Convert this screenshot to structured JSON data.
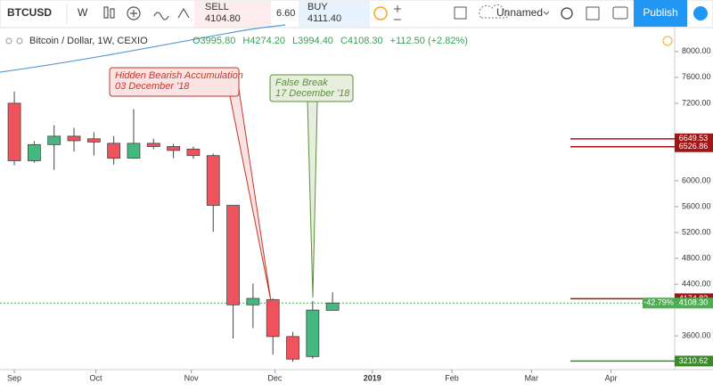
{
  "toolbar": {
    "symbol": "BTCUSD",
    "interval": "W",
    "sell_label": "SELL",
    "sell_price": "4104.80",
    "spread": "6.60",
    "buy_label": "BUY",
    "buy_price": "4111.40",
    "layout_name": "Unnamed",
    "publish": "Publish"
  },
  "chart_data": {
    "type": "candlestick",
    "title": "Bitcoin / Dollar, 1W, CEXIO",
    "ohlc_legend": [
      "O3995.80",
      "H4274.20",
      "L3994.40",
      "C4108.30",
      "+112.50 (+2.82%)"
    ],
    "x": [
      0,
      1,
      2,
      3,
      4,
      5,
      6,
      7,
      8,
      9,
      10,
      11,
      12,
      13,
      14,
      15,
      16
    ],
    "open": [
      7200,
      6310,
      6560,
      6690,
      6650,
      6580,
      6350,
      6580,
      6530,
      6490,
      6390,
      5620,
      4080,
      4160,
      3590,
      3280,
      3995.8
    ],
    "high": [
      7380,
      6610,
      6860,
      6820,
      6750,
      6690,
      7110,
      6650,
      6570,
      6530,
      6420,
      5620,
      4410,
      4180,
      3660,
      4140,
      4274.2
    ],
    "low": [
      6240,
      6280,
      6170,
      6450,
      6390,
      6250,
      6340,
      6490,
      6350,
      6340,
      5210,
      3560,
      3720,
      3310,
      3200,
      3250,
      3994.4
    ],
    "close": [
      6310,
      6560,
      6690,
      6620,
      6600,
      6350,
      6580,
      6530,
      6470,
      6390,
      5620,
      4080,
      4180,
      3590,
      3240,
      4000,
      4108.3
    ],
    "up_color": "#45b87f",
    "down_color": "#f0535d",
    "xlim": [
      -0.72,
      33.2
    ],
    "xticks": [
      {
        "value": 0,
        "label": "Sep"
      },
      {
        "value": 4.1,
        "label": "Oct"
      },
      {
        "value": 8.9,
        "label": "Nov"
      },
      {
        "value": 13.1,
        "label": "Dec"
      },
      {
        "value": 18,
        "label": "2019"
      },
      {
        "value": 22,
        "label": "Feb"
      },
      {
        "value": 26,
        "label": "Mar"
      },
      {
        "value": 30,
        "label": "Apr"
      }
    ],
    "ylim": [
      3078,
      8370
    ],
    "yticks": [
      {
        "value": 3600,
        "label": "3600.00"
      },
      {
        "value": 4400,
        "label": "4400.00"
      },
      {
        "value": 4800,
        "label": "4800.00"
      },
      {
        "value": 5200,
        "label": "5200.00"
      },
      {
        "value": 5600,
        "label": "5600.00"
      },
      {
        "value": 6000,
        "label": "6000.00"
      },
      {
        "value": 7200,
        "label": "7200.00"
      },
      {
        "value": 7600,
        "label": "7600.00"
      },
      {
        "value": 8000,
        "label": "8000.00"
      }
    ],
    "levels": [
      {
        "value": 6649.53,
        "color": "#a31515"
      },
      {
        "value": 6526.86,
        "color": "#a31515"
      },
      {
        "value": 4174.82,
        "color": "#a31515"
      },
      {
        "value": 3210.62,
        "color": "#3a8a2a"
      }
    ],
    "last_price": {
      "value": 4108.3,
      "label": "4108.30",
      "change_label": "-42.79%",
      "color": "#4caf50"
    },
    "annotations": [
      {
        "lines": [
          "Hidden Bearish Accumulation",
          "03 December '18"
        ],
        "color": "#c0392b",
        "fill": "#fbe3e3"
      },
      {
        "lines": [
          "False Break",
          "17 December '18"
        ],
        "color": "#5a8f3a",
        "fill": "#e8eedd"
      }
    ]
  }
}
